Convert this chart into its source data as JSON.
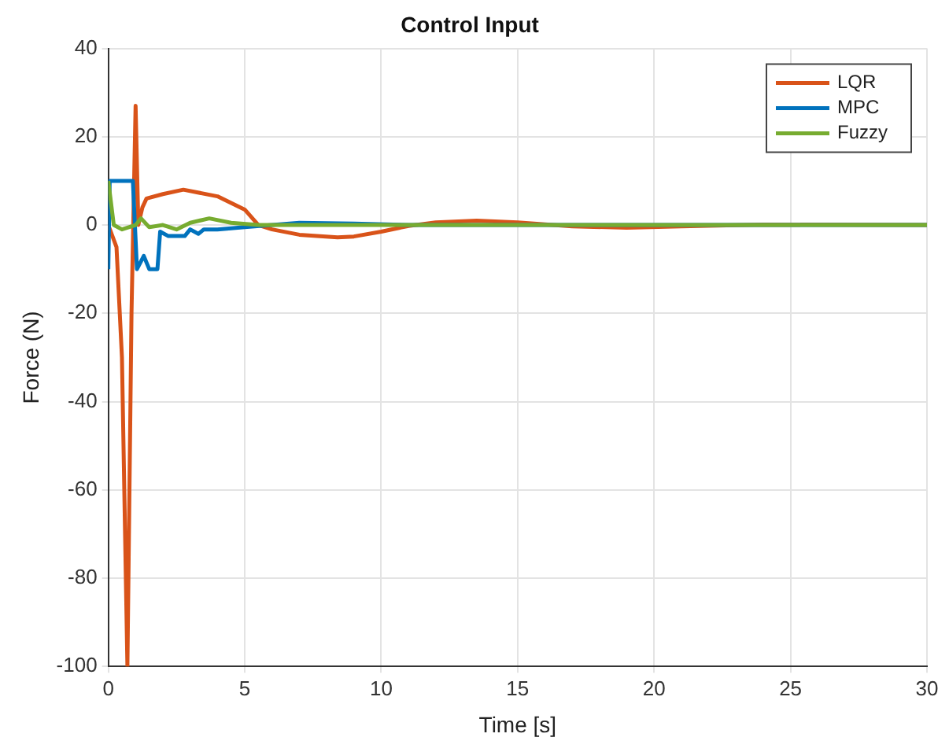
{
  "chart_data": {
    "type": "line",
    "title": "Control Input",
    "xlabel": "Time [s]",
    "ylabel": "Force (N)",
    "xlim": [
      0,
      30
    ],
    "ylim": [
      -100,
      40
    ],
    "xticks": [
      0,
      5,
      10,
      15,
      20,
      25,
      30
    ],
    "yticks": [
      -100,
      -80,
      -60,
      -40,
      -20,
      0,
      20,
      40
    ],
    "grid": true,
    "legend": "top right",
    "marker": "none",
    "line_style": "solid",
    "series": [
      {
        "name": "LQR",
        "color": "#d95319",
        "x": [
          0,
          0.3,
          0.5,
          0.7,
          0.85,
          1.0,
          1.1,
          1.25,
          1.4,
          2,
          2.75,
          4,
          5,
          5.5,
          6,
          7,
          8.4,
          9,
          10,
          11,
          12,
          13.5,
          15,
          17,
          19,
          21,
          24,
          30
        ],
        "values": [
          0,
          -5,
          -30,
          -100,
          -20,
          27,
          0,
          4,
          6,
          7,
          8,
          6.5,
          3.5,
          0,
          -1,
          -2.2,
          -2.8,
          -2.6,
          -1.5,
          -0.2,
          0.6,
          1,
          0.6,
          -0.3,
          -0.6,
          -0.3,
          0.1,
          0
        ]
      },
      {
        "name": "MPC",
        "color": "#0072bd",
        "x": [
          0,
          0.05,
          0.9,
          1.05,
          1.3,
          1.5,
          1.8,
          1.9,
          2.2,
          2.8,
          3,
          3.3,
          3.5,
          4,
          5,
          6,
          7,
          9,
          11,
          30
        ],
        "values": [
          -10,
          10,
          10,
          -10,
          -7,
          -10,
          -10,
          -1.5,
          -2.5,
          -2.5,
          -1,
          -2,
          -1,
          -1,
          -0.5,
          0,
          0.5,
          0.3,
          0,
          0
        ]
      },
      {
        "name": "Fuzzy",
        "color": "#77ac30",
        "x": [
          0,
          0.2,
          0.5,
          1,
          1.2,
          1.5,
          2,
          2.5,
          3,
          3.7,
          4.5,
          5.5,
          10,
          30
        ],
        "values": [
          10,
          0,
          -1,
          0,
          1.5,
          -0.5,
          0,
          -1,
          0.5,
          1.5,
          0.5,
          0,
          0,
          0
        ]
      }
    ]
  }
}
